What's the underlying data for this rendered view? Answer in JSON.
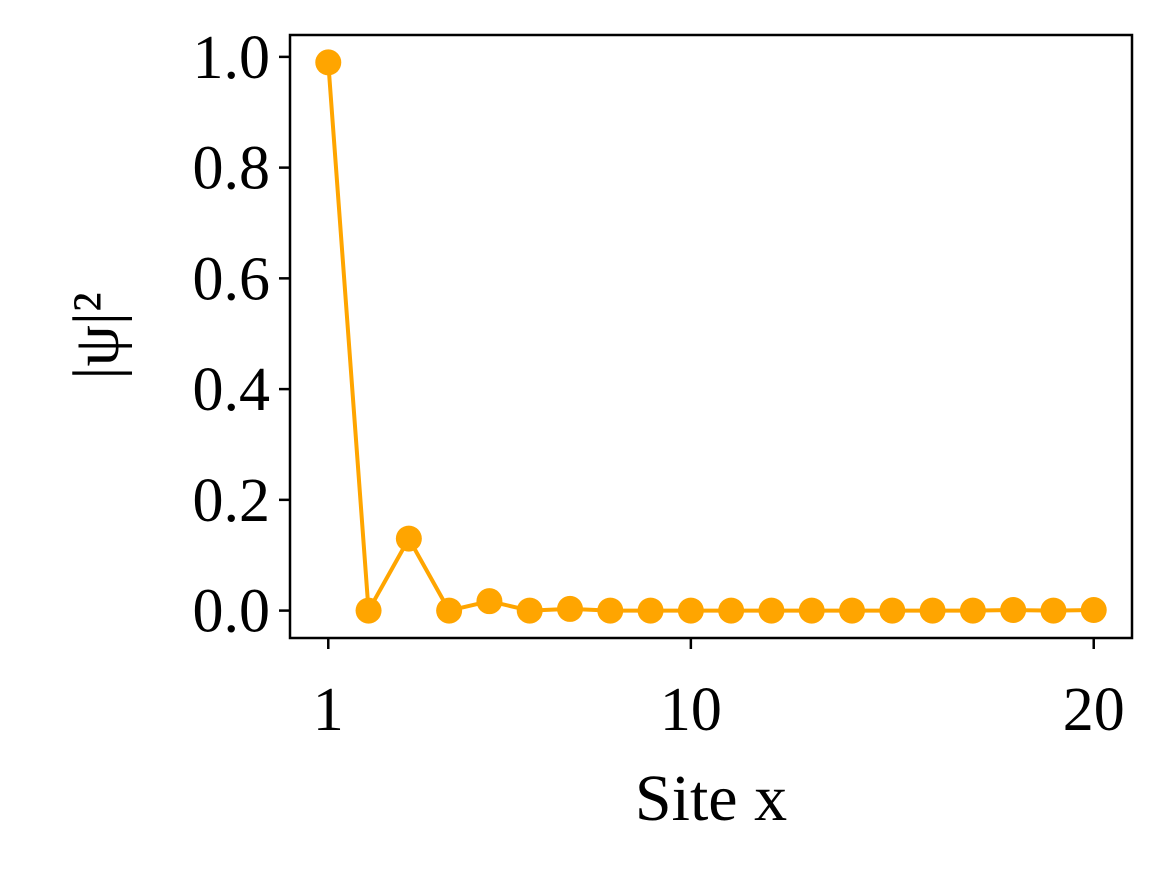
{
  "chart_data": {
    "type": "line",
    "x_label": "Site x",
    "y_label": "|ψ|²",
    "x": [
      1,
      2,
      3,
      4,
      5,
      6,
      7,
      8,
      9,
      10,
      11,
      12,
      13,
      14,
      15,
      16,
      17,
      18,
      19,
      20
    ],
    "values": [
      0.99,
      0.0,
      0.13,
      0.0,
      0.017,
      0.0,
      0.003,
      0.0,
      0.0,
      0.0,
      0.0,
      0.0,
      0.0,
      0.0,
      0.0,
      0.0,
      0.0,
      0.001,
      0.0,
      0.001
    ],
    "color": "#ffa500",
    "xlim": [
      0.05,
      20.95
    ],
    "ylim": [
      -0.0495,
      1.0395
    ],
    "xticks": [
      1,
      10,
      20
    ],
    "yticks": [
      {
        "value": 0,
        "label": "0.0"
      },
      0.2,
      0.4,
      0.6,
      0.8,
      {
        "value": 1,
        "label": "1.0"
      }
    ]
  }
}
